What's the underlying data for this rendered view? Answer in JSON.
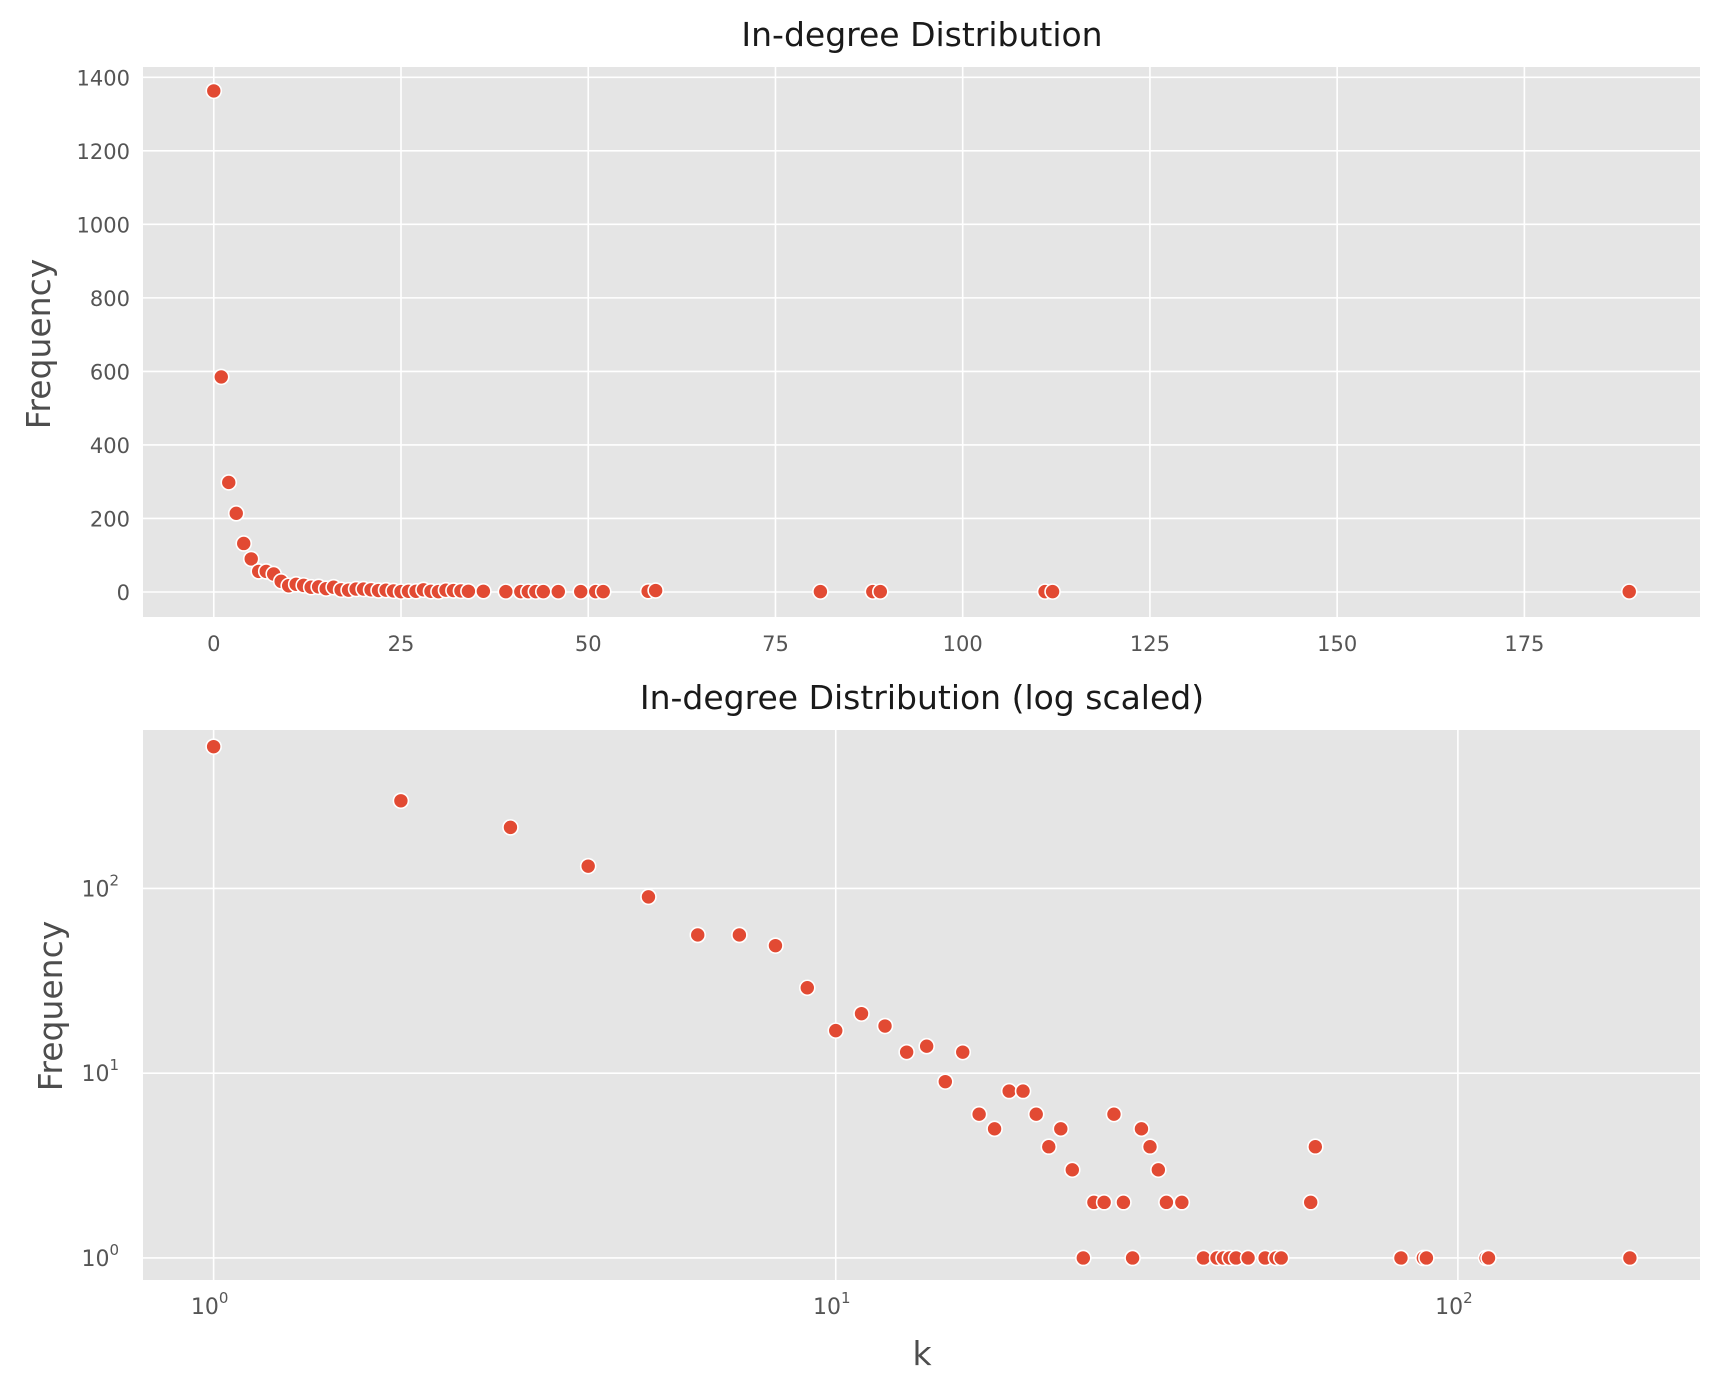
{
  "chart_data": [
    {
      "type": "scatter",
      "title": "In-degree Distribution",
      "xlabel": "",
      "ylabel": "Frequency",
      "xscale": "linear",
      "yscale": "linear",
      "xlim": [
        -9.45,
        198.45
      ],
      "ylim": [
        -68,
        1428
      ],
      "xticks": [
        0,
        25,
        50,
        75,
        100,
        125,
        150,
        175
      ],
      "yticks": [
        0,
        200,
        400,
        600,
        800,
        1000,
        1200,
        1400
      ],
      "grid": true,
      "marker_color": "#E24A33",
      "edge_color": "#ffffff",
      "background": "#E5E5E5",
      "series": [
        {
          "x": [
            0,
            1,
            2,
            3,
            4,
            5,
            6,
            7,
            8,
            9,
            10,
            11,
            12,
            13,
            14,
            15,
            16,
            17,
            18,
            19,
            20,
            21,
            22,
            23,
            24,
            25,
            26,
            27,
            28,
            29,
            30,
            31,
            32,
            33,
            34,
            36,
            39,
            41,
            42,
            43,
            44,
            46,
            49,
            51,
            52,
            58,
            59,
            81,
            88,
            89,
            111,
            112,
            189
          ],
          "y": [
            1363,
            585,
            298,
            214,
            132,
            90,
            56,
            56,
            49,
            29,
            17,
            21,
            18,
            13,
            14,
            9,
            13,
            6,
            5,
            8,
            8,
            6,
            4,
            5,
            3,
            1,
            2,
            2,
            6,
            2,
            1,
            5,
            4,
            3,
            2,
            2,
            1,
            1,
            1,
            1,
            1,
            1,
            1,
            1,
            1,
            2,
            4,
            1,
            1,
            1,
            1,
            1,
            1
          ]
        }
      ]
    },
    {
      "type": "scatter",
      "title": "In-degree Distribution (log scaled)",
      "xlabel": "k",
      "ylabel": "Frequency",
      "xscale": "log",
      "yscale": "log",
      "xlim": [
        0.77,
        245
      ],
      "ylim": [
        0.76,
        720
      ],
      "xticks": [
        1,
        10,
        100
      ],
      "yticks": [
        1,
        10,
        100
      ],
      "xtick_labels": [
        {
          "base": "10",
          "exp": "0"
        },
        {
          "base": "10",
          "exp": "1"
        },
        {
          "base": "10",
          "exp": "2"
        }
      ],
      "ytick_labels": [
        {
          "base": "10",
          "exp": "0"
        },
        {
          "base": "10",
          "exp": "1"
        },
        {
          "base": "10",
          "exp": "2"
        }
      ],
      "grid": true,
      "marker_color": "#E24A33",
      "edge_color": "#ffffff",
      "background": "#E5E5E5",
      "series": [
        {
          "x": [
            1,
            2,
            3,
            4,
            5,
            6,
            7,
            8,
            9,
            10,
            11,
            12,
            13,
            14,
            15,
            16,
            17,
            18,
            19,
            20,
            21,
            22,
            23,
            24,
            25,
            26,
            27,
            28,
            29,
            30,
            31,
            32,
            33,
            34,
            36,
            39,
            41,
            42,
            43,
            44,
            46,
            49,
            51,
            52,
            58,
            59,
            81,
            88,
            89,
            111,
            112,
            189
          ],
          "y": [
            585,
            298,
            214,
            132,
            90,
            56,
            56,
            49,
            29,
            17,
            21,
            18,
            13,
            14,
            9,
            13,
            6,
            5,
            8,
            8,
            6,
            4,
            5,
            3,
            1,
            2,
            2,
            6,
            2,
            1,
            5,
            4,
            3,
            2,
            2,
            1,
            1,
            1,
            1,
            1,
            1,
            1,
            1,
            1,
            2,
            4,
            1,
            1,
            1,
            1,
            1,
            1
          ]
        }
      ]
    }
  ]
}
